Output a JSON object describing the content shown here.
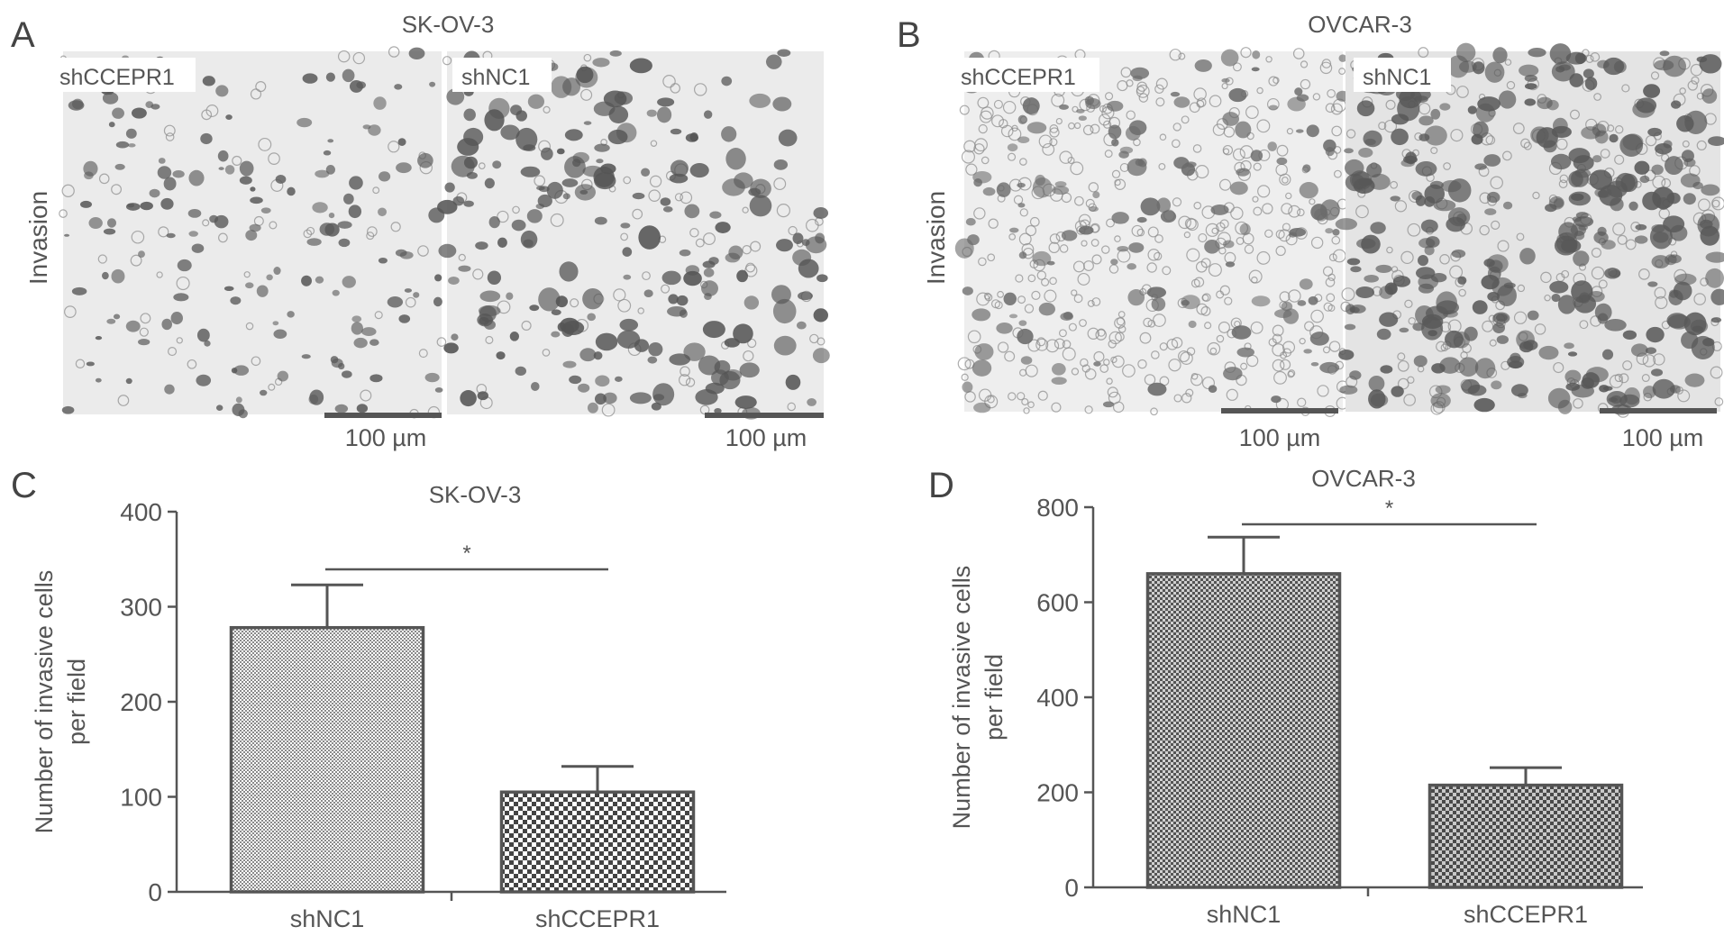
{
  "panels": {
    "A": {
      "letter": "A",
      "title": "SK-OV-3",
      "row_label": "Invasion",
      "images": [
        {
          "label": "shCCEPR1",
          "scale_bar": "100 µm",
          "density": "low"
        },
        {
          "label": "shNC1",
          "scale_bar": "100 µm",
          "density": "high"
        }
      ]
    },
    "B": {
      "letter": "B",
      "title": "OVCAR-3",
      "row_label": "Invasion",
      "images": [
        {
          "label": "shCCEPR1",
          "scale_bar": "100 µm",
          "density": "low"
        },
        {
          "label": "shNC1",
          "scale_bar": "100 µm",
          "density": "high"
        }
      ]
    }
  },
  "chart_data": [
    {
      "panel_letter": "C",
      "type": "bar",
      "title": "SK-OV-3",
      "ylabel_line1": "Number of invasive cells",
      "ylabel_line2": "per field",
      "categories": [
        "shNC1",
        "shCCEPR1"
      ],
      "values": [
        278,
        105
      ],
      "errors": [
        45,
        27
      ],
      "ylim": [
        0,
        400
      ],
      "yticks": [
        "0",
        "100",
        "200",
        "300",
        "400"
      ],
      "significance": "*",
      "fill_colors": [
        "#c9c9c9",
        "#9a9a9a"
      ]
    },
    {
      "panel_letter": "D",
      "type": "bar",
      "title": "OVCAR-3",
      "ylabel_line1": "Number of invasive cells",
      "ylabel_line2": "per field",
      "categories": [
        "shNC1",
        "shCCEPR1"
      ],
      "values": [
        660,
        215
      ],
      "errors": [
        77,
        37
      ],
      "ylim": [
        0,
        800
      ],
      "yticks": [
        "0",
        "200",
        "400",
        "600",
        "800"
      ],
      "significance": "*",
      "fill_colors": [
        "#7a7a7a",
        "#7a7a7a"
      ]
    }
  ]
}
